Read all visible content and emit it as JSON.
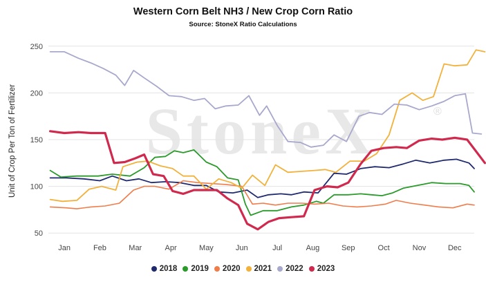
{
  "chart_data": {
    "type": "line",
    "title": "Western Corn Belt NH3 / New Crop Corn Ratio",
    "subtitle": "Source: StoneX Ratio Calculations",
    "ylabel": "Unit of Crop Per Ton of Fertilizer",
    "xlabel": "",
    "ylim": [
      45,
      255
    ],
    "yticks": [
      50,
      100,
      150,
      200,
      250
    ],
    "xlim": [
      0,
      12
    ],
    "xticks": [
      {
        "label": "Jan",
        "x": 0.45
      },
      {
        "label": "Feb",
        "x": 1.45
      },
      {
        "label": "Mar",
        "x": 2.45
      },
      {
        "label": "Apr",
        "x": 3.45
      },
      {
        "label": "May",
        "x": 4.45
      },
      {
        "label": "Jun",
        "x": 5.45
      },
      {
        "label": "Jul",
        "x": 6.45
      },
      {
        "label": "Aug",
        "x": 7.45
      },
      {
        "label": "Sep",
        "x": 8.45
      },
      {
        "label": "Oct",
        "x": 9.45
      },
      {
        "label": "Nov",
        "x": 10.45
      },
      {
        "label": "Dec",
        "x": 11.45
      }
    ],
    "grid": "horizontal",
    "legend_position": "bottom",
    "watermark": "StoneX",
    "series": [
      {
        "name": "2018",
        "color": "#1f2a6e",
        "width": 1.8,
        "points": [
          [
            0.05,
            109
          ],
          [
            0.5,
            109
          ],
          [
            1.0,
            108
          ],
          [
            1.45,
            106
          ],
          [
            1.8,
            111
          ],
          [
            2.2,
            106
          ],
          [
            2.55,
            108
          ],
          [
            2.9,
            104
          ],
          [
            3.3,
            105
          ],
          [
            3.7,
            104
          ],
          [
            4.1,
            101
          ],
          [
            4.45,
            101
          ],
          [
            4.8,
            94
          ],
          [
            5.2,
            93
          ],
          [
            5.6,
            96
          ],
          [
            5.9,
            88
          ],
          [
            6.2,
            91
          ],
          [
            6.55,
            92
          ],
          [
            6.85,
            91
          ],
          [
            7.2,
            94
          ],
          [
            7.6,
            93
          ],
          [
            8.05,
            114
          ],
          [
            8.4,
            113
          ],
          [
            8.8,
            119
          ],
          [
            9.2,
            121
          ],
          [
            9.6,
            120
          ],
          [
            10.0,
            124
          ],
          [
            10.35,
            128
          ],
          [
            10.75,
            125
          ],
          [
            11.15,
            128
          ],
          [
            11.5,
            129
          ],
          [
            11.85,
            125
          ],
          [
            12.0,
            119
          ]
        ]
      },
      {
        "name": "2019",
        "color": "#2a9a2a",
        "width": 1.8,
        "points": [
          [
            0.05,
            117
          ],
          [
            0.35,
            110
          ],
          [
            0.8,
            111
          ],
          [
            1.4,
            111
          ],
          [
            1.8,
            113
          ],
          [
            2.3,
            111
          ],
          [
            2.7,
            120
          ],
          [
            3.0,
            131
          ],
          [
            3.3,
            132
          ],
          [
            3.55,
            138
          ],
          [
            3.8,
            136
          ],
          [
            4.1,
            139
          ],
          [
            4.45,
            126
          ],
          [
            4.75,
            121
          ],
          [
            5.05,
            109
          ],
          [
            5.35,
            107
          ],
          [
            5.55,
            81
          ],
          [
            5.7,
            69
          ],
          [
            6.05,
            74
          ],
          [
            6.45,
            74
          ],
          [
            6.85,
            78
          ],
          [
            7.2,
            80
          ],
          [
            7.55,
            84
          ],
          [
            7.75,
            82
          ],
          [
            8.05,
            91
          ],
          [
            8.45,
            91
          ],
          [
            8.8,
            92
          ],
          [
            9.1,
            91
          ],
          [
            9.4,
            90
          ],
          [
            9.7,
            93
          ],
          [
            10.0,
            98
          ],
          [
            10.4,
            101
          ],
          [
            10.8,
            104
          ],
          [
            11.2,
            103
          ],
          [
            11.6,
            103
          ],
          [
            11.85,
            101
          ],
          [
            12.0,
            94
          ]
        ]
      },
      {
        "name": "2020",
        "color": "#f07c4a",
        "width": 1.6,
        "points": [
          [
            0.05,
            78
          ],
          [
            0.5,
            77
          ],
          [
            0.8,
            76
          ],
          [
            1.2,
            78
          ],
          [
            1.6,
            79
          ],
          [
            2.0,
            82
          ],
          [
            2.4,
            96
          ],
          [
            2.7,
            100
          ],
          [
            3.0,
            100
          ],
          [
            3.4,
            97
          ],
          [
            3.8,
            106
          ],
          [
            4.2,
            104
          ],
          [
            4.6,
            103
          ],
          [
            5.0,
            102
          ],
          [
            5.45,
            100
          ],
          [
            5.75,
            81
          ],
          [
            6.05,
            82
          ],
          [
            6.4,
            80
          ],
          [
            6.75,
            82
          ],
          [
            7.15,
            82
          ],
          [
            7.5,
            81
          ],
          [
            7.9,
            82
          ],
          [
            8.3,
            79
          ],
          [
            8.7,
            78
          ],
          [
            9.1,
            79
          ],
          [
            9.5,
            81
          ],
          [
            9.8,
            85
          ],
          [
            10.2,
            82
          ],
          [
            10.6,
            80
          ],
          [
            11.0,
            78
          ],
          [
            11.4,
            77
          ],
          [
            11.8,
            81
          ],
          [
            12.0,
            80
          ]
        ]
      },
      {
        "name": "2021",
        "color": "#f2b13a",
        "width": 1.8,
        "points": [
          [
            0.05,
            86
          ],
          [
            0.4,
            84
          ],
          [
            0.8,
            85
          ],
          [
            1.15,
            97
          ],
          [
            1.5,
            100
          ],
          [
            1.9,
            96
          ],
          [
            2.1,
            121
          ],
          [
            2.5,
            126
          ],
          [
            2.8,
            127
          ],
          [
            3.15,
            122
          ],
          [
            3.5,
            119
          ],
          [
            3.8,
            111
          ],
          [
            4.1,
            111
          ],
          [
            4.45,
            97
          ],
          [
            4.8,
            108
          ],
          [
            5.15,
            104
          ],
          [
            5.45,
            98
          ],
          [
            5.75,
            112
          ],
          [
            6.1,
            101
          ],
          [
            6.4,
            123
          ],
          [
            6.75,
            115
          ],
          [
            7.1,
            116
          ],
          [
            7.5,
            117
          ],
          [
            7.8,
            118
          ],
          [
            8.1,
            115
          ],
          [
            8.5,
            127
          ],
          [
            8.9,
            127
          ],
          [
            9.25,
            135
          ],
          [
            9.6,
            155
          ],
          [
            9.9,
            192
          ],
          [
            10.25,
            200
          ],
          [
            10.55,
            192
          ],
          [
            10.85,
            196
          ],
          [
            11.15,
            231
          ],
          [
            11.45,
            229
          ],
          [
            11.8,
            230
          ],
          [
            12.05,
            246
          ],
          [
            12.3,
            244
          ]
        ]
      },
      {
        "name": "2022",
        "color": "#a7a8cc",
        "width": 1.8,
        "points": [
          [
            0.05,
            244
          ],
          [
            0.45,
            244
          ],
          [
            0.85,
            237
          ],
          [
            1.2,
            232
          ],
          [
            1.55,
            226
          ],
          [
            1.9,
            219
          ],
          [
            2.15,
            208
          ],
          [
            2.4,
            224
          ],
          [
            2.7,
            216
          ],
          [
            3.05,
            207
          ],
          [
            3.4,
            197
          ],
          [
            3.75,
            196
          ],
          [
            4.1,
            192
          ],
          [
            4.4,
            194
          ],
          [
            4.7,
            183
          ],
          [
            5.0,
            186
          ],
          [
            5.35,
            187
          ],
          [
            5.65,
            197
          ],
          [
            5.95,
            176
          ],
          [
            6.15,
            186
          ],
          [
            6.45,
            165
          ],
          [
            6.75,
            148
          ],
          [
            7.1,
            147
          ],
          [
            7.4,
            142
          ],
          [
            7.75,
            144
          ],
          [
            8.05,
            155
          ],
          [
            8.4,
            148
          ],
          [
            8.75,
            175
          ],
          [
            9.05,
            179
          ],
          [
            9.4,
            177
          ],
          [
            9.75,
            188
          ],
          [
            10.1,
            187
          ],
          [
            10.45,
            182
          ],
          [
            10.8,
            186
          ],
          [
            11.15,
            191
          ],
          [
            11.45,
            197
          ],
          [
            11.75,
            199
          ],
          [
            11.95,
            157
          ],
          [
            12.2,
            156
          ]
        ]
      },
      {
        "name": "2023",
        "color": "#cf2a4e",
        "width": 3.2,
        "points": [
          [
            0.05,
            159
          ],
          [
            0.45,
            157
          ],
          [
            0.85,
            158
          ],
          [
            1.2,
            157
          ],
          [
            1.6,
            157
          ],
          [
            1.85,
            125
          ],
          [
            2.15,
            126
          ],
          [
            2.45,
            130
          ],
          [
            2.7,
            134
          ],
          [
            2.95,
            113
          ],
          [
            3.25,
            111
          ],
          [
            3.5,
            95
          ],
          [
            3.8,
            92
          ],
          [
            4.1,
            96
          ],
          [
            4.45,
            96
          ],
          [
            4.75,
            96
          ],
          [
            5.05,
            87
          ],
          [
            5.35,
            80
          ],
          [
            5.6,
            60
          ],
          [
            5.9,
            54
          ],
          [
            6.2,
            62
          ],
          [
            6.5,
            66
          ],
          [
            6.85,
            67
          ],
          [
            7.2,
            68
          ],
          [
            7.5,
            96
          ],
          [
            7.85,
            100
          ],
          [
            8.15,
            99
          ],
          [
            8.45,
            104
          ],
          [
            8.8,
            124
          ],
          [
            9.1,
            138
          ],
          [
            9.45,
            141
          ],
          [
            9.8,
            142
          ],
          [
            10.1,
            141
          ],
          [
            10.45,
            149
          ],
          [
            10.8,
            151
          ],
          [
            11.1,
            150
          ],
          [
            11.45,
            152
          ],
          [
            11.8,
            150
          ],
          [
            12.0,
            140
          ],
          [
            12.3,
            125
          ]
        ]
      }
    ]
  }
}
